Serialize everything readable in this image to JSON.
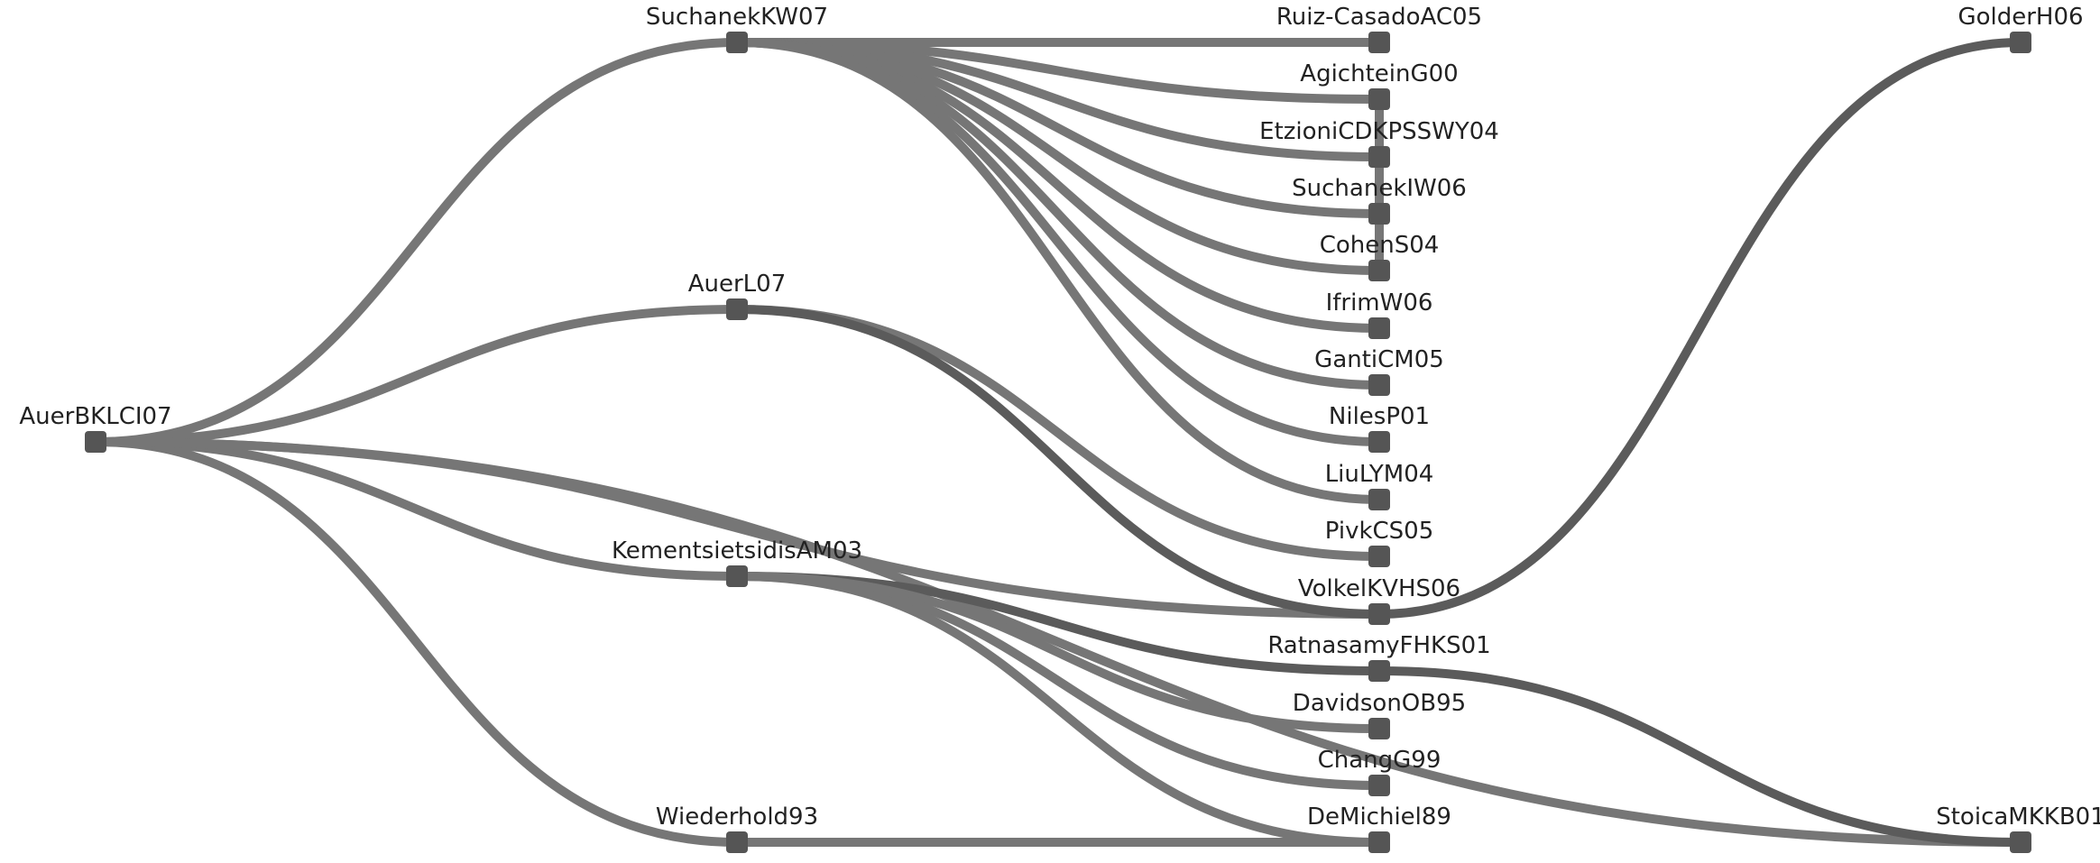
{
  "graph": {
    "nodes": [
      {
        "id": "AuerBKLCI07",
        "label": "AuerBKLCI07"
      },
      {
        "id": "SuchanekKW07",
        "label": "SuchanekKW07"
      },
      {
        "id": "AuerL07",
        "label": "AuerL07"
      },
      {
        "id": "KementsietsidisAM03",
        "label": "KementsietsidisAM03"
      },
      {
        "id": "Wiederhold93",
        "label": "Wiederhold93"
      },
      {
        "id": "Ruiz-CasadoAC05",
        "label": "Ruiz-CasadoAC05"
      },
      {
        "id": "AgichteinG00",
        "label": "AgichteinG00"
      },
      {
        "id": "EtzioniCDKPSSWY04",
        "label": "EtzioniCDKPSSWY04"
      },
      {
        "id": "SuchanekIW06",
        "label": "SuchanekIW06"
      },
      {
        "id": "CohenS04",
        "label": "CohenS04"
      },
      {
        "id": "IfrimW06",
        "label": "IfrimW06"
      },
      {
        "id": "GantiCM05",
        "label": "GantiCM05"
      },
      {
        "id": "NilesP01",
        "label": "NilesP01"
      },
      {
        "id": "LiuLYM04",
        "label": "LiuLYM04"
      },
      {
        "id": "PivkCS05",
        "label": "PivkCS05"
      },
      {
        "id": "VolkelKVHS06",
        "label": "VolkelKVHS06"
      },
      {
        "id": "RatnasamyFHKS01",
        "label": "RatnasamyFHKS01"
      },
      {
        "id": "DavidsonOB95",
        "label": "DavidsonOB95"
      },
      {
        "id": "ChangG99",
        "label": "ChangG99"
      },
      {
        "id": "DeMichiel89",
        "label": "DeMichiel89"
      },
      {
        "id": "GolderH06",
        "label": "GolderH06"
      },
      {
        "id": "StoicaMKKB01",
        "label": "StoicaMKKB01"
      }
    ],
    "edges": [
      {
        "source": "AuerBKLCI07",
        "target": "SuchanekKW07"
      },
      {
        "source": "AuerBKLCI07",
        "target": "AuerL07"
      },
      {
        "source": "AuerBKLCI07",
        "target": "KementsietsidisAM03"
      },
      {
        "source": "AuerBKLCI07",
        "target": "Wiederhold93"
      },
      {
        "source": "AuerBKLCI07",
        "target": "VolkelKVHS06"
      },
      {
        "source": "AuerBKLCI07",
        "target": "StoicaMKKB01"
      },
      {
        "source": "SuchanekKW07",
        "target": "Ruiz-CasadoAC05"
      },
      {
        "source": "SuchanekKW07",
        "target": "AgichteinG00"
      },
      {
        "source": "SuchanekKW07",
        "target": "EtzioniCDKPSSWY04"
      },
      {
        "source": "SuchanekKW07",
        "target": "SuchanekIW06"
      },
      {
        "source": "SuchanekKW07",
        "target": "CohenS04"
      },
      {
        "source": "SuchanekKW07",
        "target": "IfrimW06"
      },
      {
        "source": "SuchanekKW07",
        "target": "GantiCM05"
      },
      {
        "source": "SuchanekKW07",
        "target": "NilesP01"
      },
      {
        "source": "SuchanekKW07",
        "target": "LiuLYM04"
      },
      {
        "source": "AuerL07",
        "target": "PivkCS05"
      },
      {
        "source": "AuerL07",
        "target": "VolkelKVHS06",
        "dark": true
      },
      {
        "source": "KementsietsidisAM03",
        "target": "RatnasamyFHKS01",
        "dark": true
      },
      {
        "source": "KementsietsidisAM03",
        "target": "DavidsonOB95"
      },
      {
        "source": "KementsietsidisAM03",
        "target": "ChangG99"
      },
      {
        "source": "KementsietsidisAM03",
        "target": "DeMichiel89"
      },
      {
        "source": "Wiederhold93",
        "target": "DeMichiel89"
      },
      {
        "source": "VolkelKVHS06",
        "target": "GolderH06",
        "dark": true
      },
      {
        "source": "RatnasamyFHKS01",
        "target": "StoicaMKKB01",
        "dark": true
      },
      {
        "source": "AgichteinG00",
        "target": "CohenS04",
        "vertical": true
      }
    ]
  }
}
